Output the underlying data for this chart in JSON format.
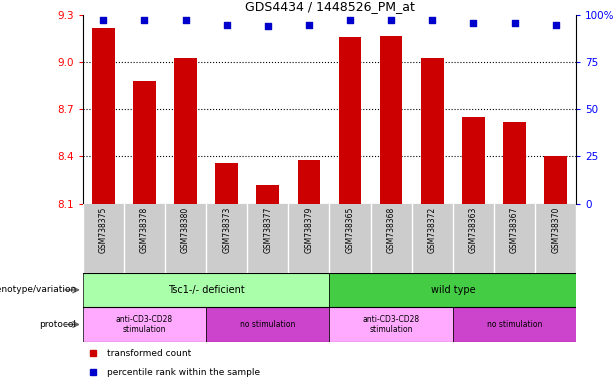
{
  "title": "GDS4434 / 1448526_PM_at",
  "samples": [
    "GSM738375",
    "GSM738378",
    "GSM738380",
    "GSM738373",
    "GSM738377",
    "GSM738379",
    "GSM738365",
    "GSM738368",
    "GSM738372",
    "GSM738363",
    "GSM738367",
    "GSM738370"
  ],
  "bar_values": [
    9.22,
    8.88,
    9.03,
    8.36,
    8.22,
    8.38,
    9.16,
    9.17,
    9.03,
    8.65,
    8.62,
    8.4
  ],
  "percentile_values": [
    9.27,
    9.27,
    9.27,
    9.24,
    9.23,
    9.24,
    9.27,
    9.27,
    9.27,
    9.25,
    9.25,
    9.24
  ],
  "ylim_left": [
    8.1,
    9.3
  ],
  "yticks_left": [
    8.1,
    8.4,
    8.7,
    9.0,
    9.3
  ],
  "yticks_right": [
    0,
    25,
    50,
    75,
    100
  ],
  "bar_color": "#cc0000",
  "dot_color": "#0000cc",
  "tick_area_color": "#cccccc",
  "genotype_tsc1_color": "#aaffaa",
  "genotype_wt_color": "#44cc44",
  "protocol_stimulation_color": "#ffaaff",
  "protocol_nostim_color": "#cc44cc",
  "genotype_labels": [
    "Tsc1-/- deficient",
    "wild type"
  ],
  "protocol_labels": [
    "anti-CD3-CD28\nstimulation",
    "no stimulation",
    "anti-CD3-CD28\nstimulation",
    "no stimulation"
  ],
  "left_labels": [
    "genotype/variation",
    "protocol"
  ],
  "legend_red": "transformed count",
  "legend_blue": "percentile rank within the sample"
}
